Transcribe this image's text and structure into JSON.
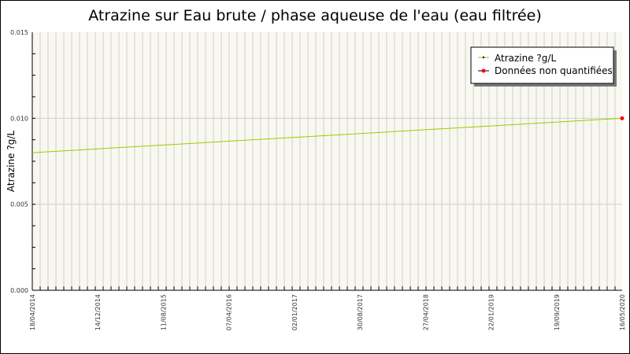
{
  "chart_data": {
    "type": "line",
    "title": "Atrazine sur Eau brute / phase aqueuse de l'eau (eau filtrée)",
    "xlabel": "",
    "ylabel": "Atrazine ?g/L",
    "ylim": [
      0,
      0.015
    ],
    "yticks": [
      "0.000",
      "0.005",
      "0.010",
      "0.015"
    ],
    "xlim": [
      "2014-04-18",
      "2020-05-16"
    ],
    "xticks": [
      "18/04/2014",
      "14/12/2014",
      "11/08/2015",
      "07/04/2016",
      "02/01/2017",
      "30/08/2017",
      "27/04/2018",
      "22/01/2019",
      "19/09/2019",
      "16/05/2020"
    ],
    "grid": true,
    "legend_position": "top-right",
    "series": [
      {
        "name": "Atrazine ?g/L",
        "color": "#99cc00",
        "x": [
          "2014-04-18",
          "2020-05-16"
        ],
        "values": [
          0.008,
          0.01
        ]
      },
      {
        "name": "Données non quantifiées",
        "color": "#ff0000",
        "x": [
          "2020-05-16"
        ],
        "values": [
          0.01
        ]
      }
    ]
  }
}
